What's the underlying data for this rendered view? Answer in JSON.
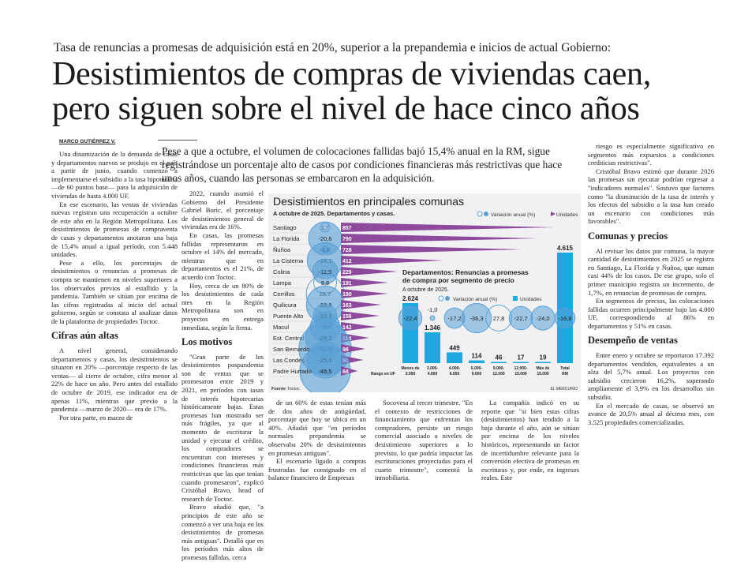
{
  "article": {
    "kicker": "Tasa de renuncias a promesas de adquisición está en 20%, superior a la prepandemia e inicios de actual Gobierno:",
    "headline_1": "Desistimientos de compras de viviendas caen,",
    "headline_2": "pero siguen sobre el nivel de hace cinco años",
    "byline": "MARCO GUTIÉRREZ V.",
    "deck": "Pese a que a octubre, el volumen de colocaciones fallidas bajó 15,4% anual en la RM, sigue registrándose un porcentaje alto de casos por condiciones financieras más restrictivas que hace unos años, cuando las personas se embarcaron en la adquisición.",
    "col1": [
      "Una dinamización de la demanda de casas y departamentos nuevos se produjo en el país a partir de junio, cuando comenzó a implementarse el subsidio a la tasa hipotecaria —de 60 puntos base— para la adquisición de viviendas de hasta 4.000 UF.",
      "En ese escenario, las ventas de viviendas nuevas registran una recuperación a octubre de este año en la Región Metropolitana. Los desistimientos de promesas de compraventa de casas y departamentos anotaron una baja de 15,4% anual a igual período, con 5.448 unidades.",
      "Pese a ello, los porcentajes de desistimientos o renuncias a promesas de compra se mantienen en niveles superiores a los observados previos al estallido y la pandemia. También se sitúan por encima de las cifras registradas al inicio del actual gobierno, según se constata al analizar datos de la plataforma de propiedades Toctoc."
    ],
    "h_cifras": "Cifras aún altas",
    "col1b": [
      "A nivel general, considerando departamentos y casas, los desistimientos se situaron en 20% —porcentaje respecto de las ventas— al cierre de octubre, cifra menor al 22% de hace un año. Pero antes del estallido de octubre de 2019, ese indicador era de apenas 11%, mientras que previo a la pandemia —marzo de 2020— era de 17%.",
      "Por otra parte, en marzo de"
    ],
    "col2": [
      "2022, cuando asumió el Gobierno del Presidente Gabriel Boric, el porcentaje de desistimientos general de viviendas era de 16%.",
      "En casas, las promesas fallidas representaron en octubre el 14% del mercado, mientras que en departamentos es el 21%, de acuerdo con Toctoc.",
      "Hoy, cerca de un 80% de los desistimientos de cada mes en la Región Metropolitana son en proyectos en entrega inmediata, según la firma."
    ],
    "h_motivos": "Los motivos",
    "col2b": [
      "\"Gran parte de los desistimientos pospandemia son de ventas que se promesaron entre 2019 y 2021, en períodos con tasas de interés hipotecarias históricamente bajas. Estas promesas han mostrado ser más frágiles, ya que al momento de escriturar la unidad y ejecutar el crédito, los compradores se encuentran con intereses y condiciones financieras más restrictivas que las que tenían cuando promesaron\", explicó Cristóbal Bravo, head of research de Toctoc.",
      "Bravo añadió que, \"a principios de este año se comenzó a ver una baja en los desistimientos de promesas más antiguas\". Detalló que en los períodos más altos de promesas fallidas, cerca"
    ],
    "col3": [
      "de un 60% de estas tenían más de dos años de antigüedad, porcentaje que hoy se ubica en un 40%. Añadió que \"en períodos normales prepandemia se observaba 20% de desistimientos en promesas antiguas\".",
      "El escenario ligado a compras frustradas fue consignado en el balance financiero de Empresas"
    ],
    "col4": [
      "Socovesa al tercer trimestre. \"En el contexto de restricciones de financiamiento que enfrentan los compradores, persiste un riesgo comercial asociado a niveles de desistimiento superiores a lo previsto, lo que podría impactar las escrituraciones proyectadas para el cuarto trimestre\", comentó la inmobiliaria."
    ],
    "col5": [
      "La compañía indicó en su reporte que \"si bien estas cifras (desistimientos) han tendido a la baja durante el año, aún se sitúan por encima de los niveles históricos, representando un factor de incertidumbre relevante para la conversión efectiva de promesas en escrituras y, por ende, en ingresos reales. Este"
    ],
    "col6": [
      "riesgo es especialmente significativo en segmentos más expuestos a condiciones crediticias restrictivas\".",
      "Cristóbal Bravo estimó que durante 2026 las promesas sin ejecutar podrían regresar a \"indicadores normales\". Sostuvo que factores como \"la disminución de la tasa de interés y los efectos del subsidio a la tasa han creado un escenario con condiciones más favorables\"."
    ],
    "h_comunas": "Comunas y precios",
    "col6b": [
      "Al revisar los datos por comuna, la mayor cantidad de desistimientos en 2025 se registra en Santiago, La Florida y Ñuñoa, que suman casi 44% de los casos. De ese grupo, solo el primer municipio registra un incremento, de 1,7%, en renuncias de promesas de compra.",
      "En segmentos de precios, las colocaciones fallidas ocurren principalmente bajo las 4.000 UF, correspondiendo al 86% en departamentos y 51% en casas."
    ],
    "h_desempeno": "Desempeño de ventas",
    "col6c": [
      "Entre enero y octubre se reportaron 17.392 departamentos vendidos, equivalentes a un alza del 5,7% anual. Los proyectos con subsidio crecieron 16,2%, superando ampliamente el 3,9% en los desarrollos sin subsidio.",
      "En el mercado de casas, se observó un avance de 20,5% anual al décimo mes, con 3.525 propiedades comercializadas."
    ]
  },
  "chart_data": [
    {
      "type": "bar",
      "title": "Desistimientos en principales comunas",
      "subtitle": "A octubre de 2025. Departamentos y casas.",
      "legend": [
        "Variación anual (%)",
        "Unidades"
      ],
      "categories": [
        "Santiago",
        "La Florida",
        "Ñuñoa",
        "La Cisterna",
        "Colina",
        "Lampa",
        "Cerrillos",
        "Quilicura",
        "Puente Alto",
        "Macul",
        "Est. Central",
        "San Bernardo",
        "Las Condes",
        "Padre Hurtado"
      ],
      "variation": [
        "1,7",
        "-20,6",
        "-1,0",
        "-24,1",
        "-11,9",
        "9,8",
        "26,7",
        "-26,6",
        "-10,3",
        "-16,5",
        "-29,2",
        "-52,0",
        "-25,0",
        "-48,5"
      ],
      "units": [
        857,
        790,
        728,
        412,
        229,
        191,
        190,
        163,
        156,
        142,
        114,
        98,
        90,
        68
      ],
      "source_label": "Fuente",
      "source": "Toctoc",
      "credit": "EL MERCURIO",
      "color_units": "#8e4a9c",
      "color_variation": "#5aa0d6"
    },
    {
      "type": "bar",
      "title": "Departamentos: Renuncias a promesas de compra por segmento de precio",
      "subtitle": "A octubre de 2025.",
      "legend": [
        "Variación anual (%)",
        "Unidades"
      ],
      "xlabel": "Rango en UF",
      "categories": [
        [
          "Menos de",
          "3.000"
        ],
        [
          "3.000-",
          "4.000"
        ],
        [
          "4.000-",
          "6.000"
        ],
        [
          "6.000-",
          "9.000"
        ],
        [
          "9.000-",
          "12.000"
        ],
        [
          "12.000-",
          "15.000"
        ],
        [
          "Más de",
          "15.000"
        ],
        [
          "Total",
          "RM"
        ]
      ],
      "units": [
        2624,
        1346,
        449,
        114,
        46,
        17,
        19,
        4615
      ],
      "unit_labels": [
        "2.624",
        "1.346",
        "449",
        "114",
        "46",
        "17",
        "19",
        "4.615"
      ],
      "variation": [
        "-22,4",
        "-1,0",
        "-17,2",
        "-36,3",
        "27,8",
        "-22,7",
        "-24,0",
        "-16,8"
      ],
      "color_units": "#1ea8e0"
    }
  ]
}
